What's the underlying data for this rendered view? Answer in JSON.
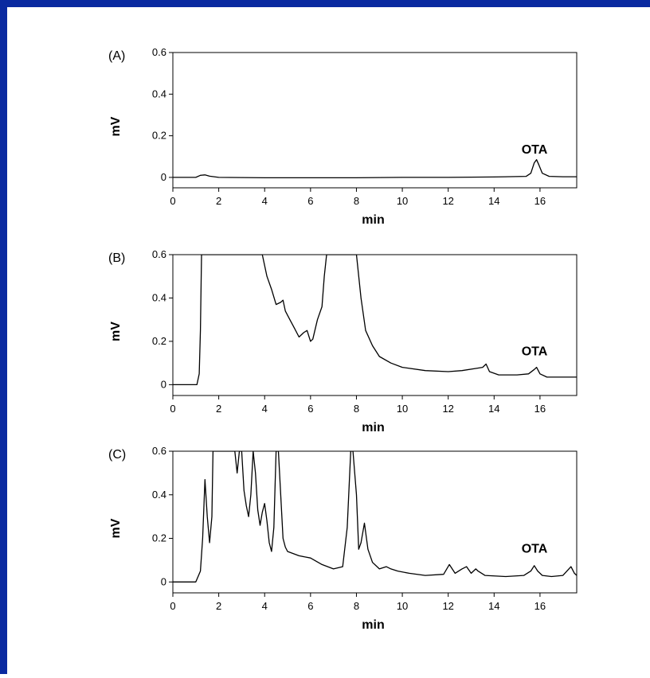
{
  "chart_data": [
    {
      "type": "line",
      "panel_label": "(A)",
      "xlabel": "min",
      "ylabel": "mV",
      "xlim": [
        0,
        17.6
      ],
      "ylim": [
        -0.05,
        0.6
      ],
      "xticks": [
        "0",
        "2",
        "4",
        "6",
        "8",
        "10",
        "12",
        "14",
        "16"
      ],
      "yticks": [
        "0",
        "0.2",
        "0.4",
        "0.6"
      ],
      "annotation": {
        "text": "OTA",
        "x": 15.9,
        "y": 0.1
      },
      "series": [
        {
          "x": [
            0.0,
            1.0,
            1.2,
            1.4,
            1.6,
            2.0,
            4.0,
            6.0,
            8.0,
            10.0,
            12.0,
            14.0,
            15.4,
            15.6,
            15.75,
            15.85,
            15.95,
            16.1,
            16.4,
            17.0,
            17.6
          ],
          "y": [
            0.0,
            0.0,
            0.01,
            0.012,
            0.006,
            0.0,
            -0.002,
            -0.002,
            -0.002,
            0.0,
            0.0,
            0.002,
            0.005,
            0.02,
            0.07,
            0.085,
            0.06,
            0.02,
            0.005,
            0.003,
            0.003
          ]
        }
      ]
    },
    {
      "type": "line",
      "panel_label": "(B)",
      "xlabel": "min",
      "ylabel": "mV",
      "xlim": [
        0,
        17.6
      ],
      "ylim": [
        -0.05,
        0.6
      ],
      "xticks": [
        "0",
        "2",
        "4",
        "6",
        "8",
        "10",
        "12",
        "14",
        "16"
      ],
      "yticks": [
        "0",
        "0.2",
        "0.4",
        "0.6"
      ],
      "annotation": {
        "text": "OTA",
        "x": 15.9,
        "y": 0.12
      },
      "series": [
        {
          "x": [
            0.0,
            1.05,
            1.15,
            1.2,
            1.25,
            3.9,
            4.1,
            4.3,
            4.5,
            4.7,
            4.8,
            4.9,
            5.1,
            5.3,
            5.5,
            5.7,
            5.85,
            6.0,
            6.1,
            6.3,
            6.5,
            6.6,
            6.7,
            7.9,
            8.0,
            8.2,
            8.4,
            8.7,
            9.0,
            9.5,
            10.0,
            11.0,
            12.0,
            12.6,
            13.2,
            13.5,
            13.65,
            13.8,
            14.2,
            15.0,
            15.5,
            15.75,
            15.85,
            16.0,
            16.3,
            17.6
          ],
          "y": [
            0.0,
            0.0,
            0.05,
            0.25,
            0.6,
            0.6,
            0.5,
            0.44,
            0.37,
            0.38,
            0.39,
            0.34,
            0.3,
            0.26,
            0.22,
            0.24,
            0.25,
            0.2,
            0.21,
            0.3,
            0.36,
            0.5,
            0.6,
            0.6,
            0.6,
            0.4,
            0.25,
            0.18,
            0.13,
            0.1,
            0.08,
            0.065,
            0.06,
            0.065,
            0.075,
            0.08,
            0.095,
            0.06,
            0.045,
            0.045,
            0.05,
            0.07,
            0.08,
            0.05,
            0.035,
            0.035
          ]
        }
      ]
    },
    {
      "type": "line",
      "panel_label": "(C)",
      "xlabel": "min",
      "ylabel": "mV",
      "xlim": [
        0,
        17.6
      ],
      "ylim": [
        -0.05,
        0.6
      ],
      "xticks": [
        "0",
        "2",
        "4",
        "6",
        "8",
        "10",
        "12",
        "14",
        "16"
      ],
      "yticks": [
        "0",
        "0.2",
        "0.4",
        "0.6"
      ],
      "annotation": {
        "text": "OTA",
        "x": 15.9,
        "y": 0.12
      },
      "series": [
        {
          "x": [
            0.0,
            1.0,
            1.2,
            1.3,
            1.4,
            1.5,
            1.6,
            1.7,
            1.75,
            1.8,
            2.7,
            2.8,
            2.9,
            3.0,
            3.1,
            3.2,
            3.3,
            3.4,
            3.5,
            3.6,
            3.7,
            3.8,
            3.9,
            4.0,
            4.1,
            4.2,
            4.3,
            4.4,
            4.5,
            4.55,
            4.6,
            4.7,
            4.8,
            4.9,
            5.0,
            5.5,
            6.0,
            6.5,
            7.0,
            7.4,
            7.6,
            7.75,
            7.85,
            8.0,
            8.1,
            8.2,
            8.35,
            8.5,
            8.7,
            9.0,
            9.3,
            9.5,
            9.8,
            10.3,
            11.0,
            11.8,
            12.05,
            12.3,
            12.6,
            12.8,
            13.0,
            13.2,
            13.3,
            13.6,
            14.5,
            15.3,
            15.6,
            15.75,
            15.9,
            16.1,
            16.5,
            17.0,
            17.35,
            17.5,
            17.6
          ],
          "y": [
            0.0,
            0.0,
            0.05,
            0.2,
            0.47,
            0.3,
            0.18,
            0.3,
            0.6,
            0.6,
            0.6,
            0.5,
            0.6,
            0.6,
            0.42,
            0.35,
            0.3,
            0.4,
            0.6,
            0.5,
            0.33,
            0.26,
            0.32,
            0.36,
            0.28,
            0.18,
            0.14,
            0.25,
            0.6,
            0.6,
            0.6,
            0.4,
            0.2,
            0.16,
            0.14,
            0.12,
            0.11,
            0.08,
            0.06,
            0.07,
            0.25,
            0.6,
            0.6,
            0.4,
            0.15,
            0.18,
            0.27,
            0.15,
            0.09,
            0.06,
            0.07,
            0.06,
            0.05,
            0.04,
            0.03,
            0.035,
            0.08,
            0.04,
            0.06,
            0.07,
            0.04,
            0.06,
            0.05,
            0.03,
            0.025,
            0.03,
            0.05,
            0.075,
            0.05,
            0.03,
            0.025,
            0.03,
            0.07,
            0.04,
            0.03
          ]
        }
      ]
    }
  ]
}
